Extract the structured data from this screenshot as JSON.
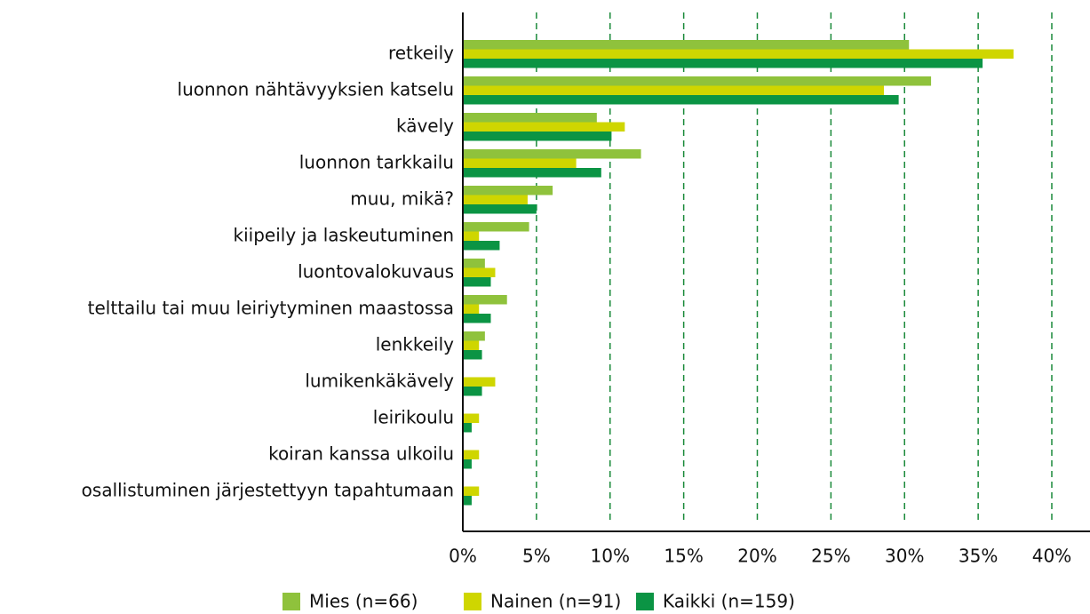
{
  "chart_data": {
    "type": "barh",
    "categories": [
      "retkeily",
      "luonnon nähtävyyksien katselu",
      "kävely",
      "luonnon tarkkailu",
      "muu, mikä?",
      "kiipeily ja laskeutuminen",
      "luontovalokuvaus",
      "telttailu tai muu leiriytyminen maastossa",
      "lenkkeily",
      "lumikenkäkävely",
      "leirikoulu",
      "koiran kanssa ulkoilu",
      "osallistuminen järjestettyyn tapahtumaan"
    ],
    "series": [
      {
        "name": "Mies (n=66)",
        "color": "#8fc23c",
        "values": [
          30.3,
          31.8,
          9.1,
          12.1,
          6.1,
          4.5,
          1.5,
          3.0,
          1.5,
          0,
          0,
          0,
          0
        ]
      },
      {
        "name": "Nainen (n=91)",
        "color": "#cfd600",
        "values": [
          37.4,
          28.6,
          11.0,
          7.7,
          4.4,
          1.1,
          2.2,
          1.1,
          1.1,
          2.2,
          1.1,
          1.1,
          1.1
        ]
      },
      {
        "name": "Kaikki (n=159)",
        "color": "#0b9444",
        "values": [
          35.3,
          29.6,
          10.1,
          9.4,
          5.0,
          2.5,
          1.9,
          1.9,
          1.3,
          1.3,
          0.6,
          0.6,
          0.6
        ]
      }
    ],
    "xlim": [
      0,
      40
    ],
    "xticks": [
      {
        "value": 0,
        "label": "0%"
      },
      {
        "value": 5,
        "label": "5%"
      },
      {
        "value": 10,
        "label": "10%"
      },
      {
        "value": 15,
        "label": "15%"
      },
      {
        "value": 20,
        "label": "20%"
      },
      {
        "value": 25,
        "label": "25%"
      },
      {
        "value": 30,
        "label": "30%"
      },
      {
        "value": 35,
        "label": "35%"
      },
      {
        "value": 40,
        "label": "40%"
      }
    ],
    "grid": true,
    "grid_color": "#1a8a3a",
    "legend": "bottom"
  }
}
